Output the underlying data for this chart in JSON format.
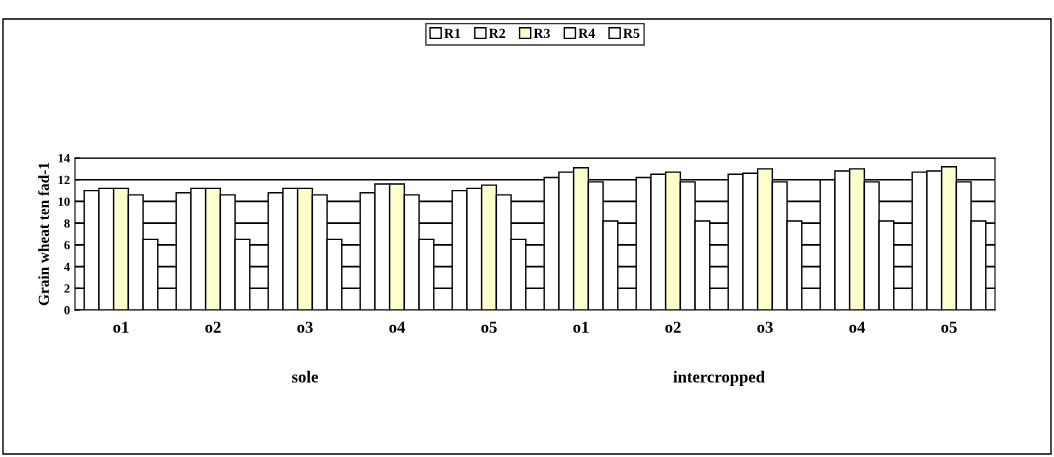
{
  "chart_data": {
    "type": "bar",
    "ylabel": "Grain wheat ten fad-1",
    "categories": [
      "o1",
      "o2",
      "o3",
      "o4",
      "o5",
      "o1",
      "o2",
      "o3",
      "o4",
      "o5"
    ],
    "series": [
      {
        "name": "R1",
        "color": "#ffffff",
        "values": [
          11.0,
          10.8,
          10.8,
          10.8,
          11.0,
          12.2,
          12.2,
          12.5,
          12.0,
          12.7
        ]
      },
      {
        "name": "R2",
        "color": "#ffffff",
        "values": [
          11.2,
          11.2,
          11.2,
          11.6,
          11.2,
          12.7,
          12.5,
          12.6,
          12.8,
          12.8
        ]
      },
      {
        "name": "R3",
        "color": "#ffffcc",
        "values": [
          11.2,
          11.2,
          11.2,
          11.6,
          11.5,
          13.1,
          12.7,
          13.0,
          13.0,
          13.2
        ]
      },
      {
        "name": "R4",
        "color": "#ffffff",
        "values": [
          10.6,
          10.6,
          10.6,
          10.6,
          10.6,
          11.8,
          11.8,
          11.8,
          11.8,
          11.8
        ]
      },
      {
        "name": "R5",
        "color": "#ffffff",
        "values": [
          6.5,
          6.5,
          6.5,
          6.5,
          6.5,
          8.2,
          8.2,
          8.2,
          8.2,
          8.2
        ]
      }
    ],
    "annotations": [
      "sole",
      "intercropped"
    ],
    "ylim": [
      0,
      14
    ],
    "yticks": [
      0,
      2,
      4,
      6,
      8,
      10,
      12,
      14
    ],
    "grid": "y",
    "legend": "top"
  }
}
